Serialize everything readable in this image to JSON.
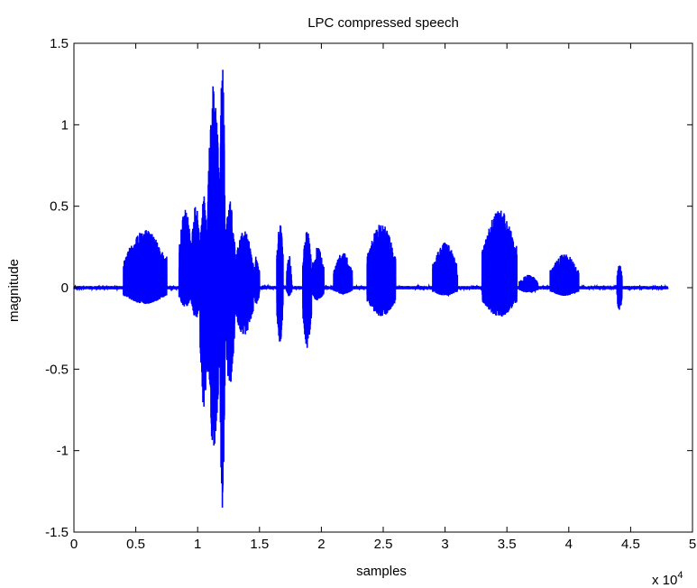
{
  "chart_data": {
    "type": "line",
    "title": "LPC compressed speech",
    "xlabel": "samples",
    "ylabel": "magnitude",
    "x_multiplier": "x 10",
    "x_multiplier_exponent": "4",
    "xlim": [
      0,
      50000
    ],
    "ylim": [
      -1.5,
      1.5
    ],
    "x_ticks": [
      0,
      5000,
      10000,
      15000,
      20000,
      25000,
      30000,
      35000,
      40000,
      45000,
      50000
    ],
    "x_tick_labels": [
      "0",
      "0.5",
      "1",
      "1.5",
      "2",
      "2.5",
      "3",
      "3.5",
      "4",
      "4.5",
      "5"
    ],
    "y_ticks": [
      1.5,
      1,
      0.5,
      0,
      -0.5,
      -1,
      -1.5
    ],
    "y_tick_labels": [
      "1.5",
      "1",
      "0.5",
      "0",
      "-0.5",
      "-1",
      "-1.5"
    ],
    "grid": false,
    "series": [
      {
        "color": "#0000ff",
        "x_end": 48000,
        "baseline_noise": 0.01,
        "bursts": [
          {
            "x": [
              4000,
              7500
            ],
            "amp": 0.36,
            "neg": 0.1
          },
          {
            "x": [
              8500,
              9500
            ],
            "amp": 0.5,
            "neg": 0.12
          },
          {
            "x": [
              9500,
              10200
            ],
            "amp": 0.55,
            "neg": 0.2
          },
          {
            "x": [
              10200,
              10800
            ],
            "amp": 0.6,
            "neg": 0.75
          },
          {
            "x": [
              10800,
              11800
            ],
            "amp": 1.25,
            "neg": 1.0
          },
          {
            "x": [
              11800,
              12200
            ],
            "amp": 1.43,
            "neg": 1.38
          },
          {
            "x": [
              12200,
              13000
            ],
            "amp": 0.55,
            "neg": 0.6
          },
          {
            "x": [
              13000,
              14500
            ],
            "amp": 0.35,
            "neg": 0.3
          },
          {
            "x": [
              14500,
              15000
            ],
            "amp": 0.2,
            "neg": 0.1
          },
          {
            "x": [
              16400,
              16900
            ],
            "amp": 0.42,
            "neg": 0.35
          },
          {
            "x": [
              17200,
              17600
            ],
            "amp": 0.2,
            "neg": 0.05
          },
          {
            "x": [
              18500,
              19200
            ],
            "amp": 0.35,
            "neg": 0.37
          },
          {
            "x": [
              19200,
              20200
            ],
            "amp": 0.25,
            "neg": 0.08
          },
          {
            "x": [
              21000,
              22500
            ],
            "amp": 0.22,
            "neg": 0.04
          },
          {
            "x": [
              23700,
              26000
            ],
            "amp": 0.4,
            "neg": 0.18
          },
          {
            "x": [
              29000,
              31000
            ],
            "amp": 0.28,
            "neg": 0.05
          },
          {
            "x": [
              33000,
              35800
            ],
            "amp": 0.48,
            "neg": 0.18
          },
          {
            "x": [
              36000,
              37500
            ],
            "amp": 0.08,
            "neg": 0.03
          },
          {
            "x": [
              38500,
              40800
            ],
            "amp": 0.21,
            "neg": 0.05
          },
          {
            "x": [
              43900,
              44300
            ],
            "amp": 0.15,
            "neg": 0.15
          }
        ]
      }
    ]
  }
}
